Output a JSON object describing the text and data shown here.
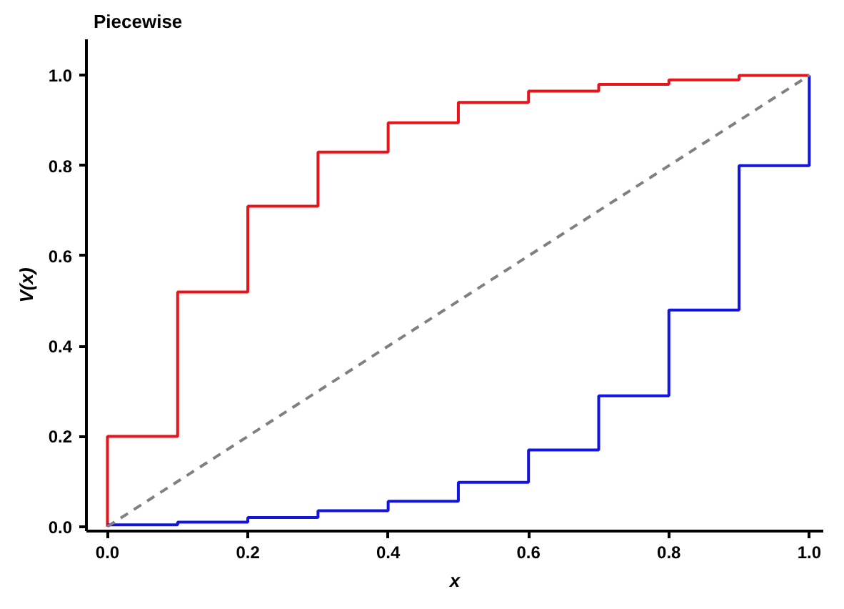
{
  "chart_data": {
    "type": "step",
    "title": "Piecewise",
    "xlabel": "x",
    "ylabel": "V(x)",
    "xlim": [
      -0.03,
      1.02
    ],
    "ylim": [
      -0.01,
      1.08
    ],
    "xticks": [
      {
        "value": 0,
        "label": "0.0"
      },
      0.2,
      0.4,
      0.6,
      0.8,
      {
        "value": 1,
        "label": "1.0"
      }
    ],
    "yticks": [
      {
        "value": 0,
        "label": "0.0"
      },
      0.2,
      0.4,
      0.6,
      0.8,
      {
        "value": 1,
        "label": "1.0"
      }
    ],
    "grid": false,
    "series": [
      {
        "color": "#e8141c",
        "x": [
          0,
          0,
          0.1,
          0.2,
          0.3,
          0.4,
          0.5,
          0.6,
          0.7,
          0.8,
          0.9,
          1.0
        ],
        "values": [
          0,
          0.2,
          0.52,
          0.71,
          0.83,
          0.895,
          0.94,
          0.965,
          0.98,
          0.99,
          1.0,
          1.0
        ]
      },
      {
        "color": "#1414e0",
        "x": [
          0,
          0.1,
          0.2,
          0.3,
          0.4,
          0.5,
          0.6,
          0.7,
          0.8,
          0.9,
          1.0,
          1.0
        ],
        "values": [
          0.004,
          0.01,
          0.02,
          0.035,
          0.056,
          0.098,
          0.17,
          0.29,
          0.48,
          0.8,
          0.8,
          1.0
        ]
      },
      {
        "type": "line",
        "color": "#808080",
        "line_style": "dashed",
        "x": [
          0,
          1
        ],
        "values": [
          0,
          1
        ]
      }
    ]
  }
}
